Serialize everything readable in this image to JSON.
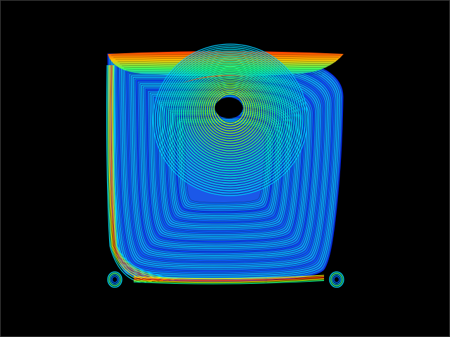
{
  "scene": {
    "background": "#000000",
    "frame_border": "#3a3a3a",
    "subject": "streamline-contour-field",
    "colormap": [
      "#0000ff",
      "#0070ff",
      "#00d0ff",
      "#00ffb0",
      "#80ff00",
      "#ffff00",
      "#ff9000",
      "#ff0000"
    ],
    "core_color": "#000000",
    "line_color": "#000000"
  }
}
